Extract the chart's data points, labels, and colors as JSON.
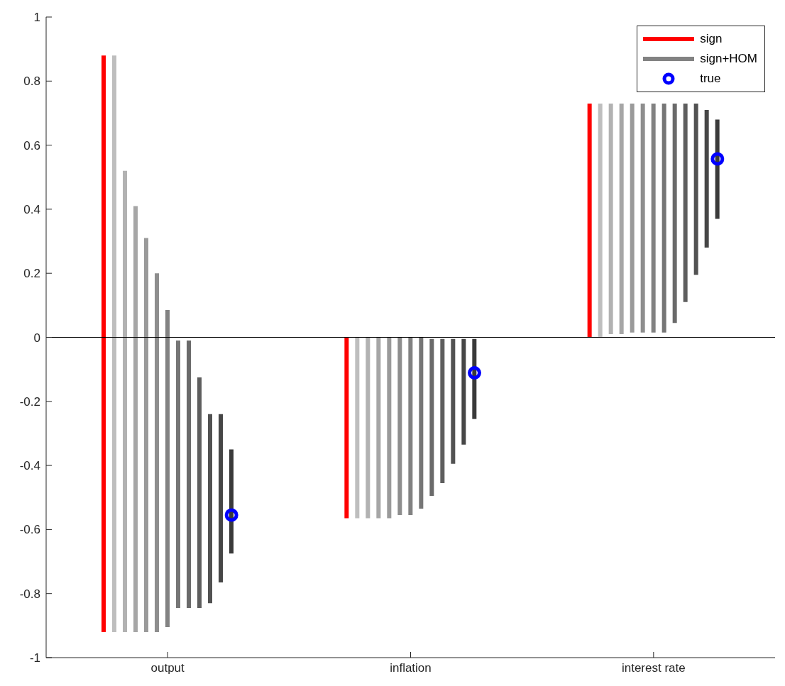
{
  "chart_data": {
    "type": "bar",
    "categories": [
      "output",
      "inflation",
      "interest rate"
    ],
    "ylim": [
      -1,
      1
    ],
    "yticks": [
      -1,
      -0.8,
      -0.6,
      -0.4,
      -0.2,
      0,
      0.2,
      0.4,
      0.6,
      0.8,
      1
    ],
    "grid": false,
    "legend": "top right",
    "ref_lines": [
      {
        "axis": "y",
        "value": 0,
        "color": "#000000"
      }
    ],
    "series": [
      {
        "name": "sign",
        "color": "#ff0000",
        "base": [
          -0.92,
          -0.565,
          0
        ],
        "values": [
          1.8,
          0.565,
          0.73
        ]
      },
      {
        "color": "#bebebe",
        "base": [
          -0.92,
          -0.565,
          0
        ],
        "values": [
          1.8,
          0.565,
          0.73
        ]
      },
      {
        "color": "#b2b2b2",
        "base": [
          -0.92,
          -0.565,
          0.01
        ],
        "values": [
          1.44,
          0.565,
          0.72
        ]
      },
      {
        "color": "#a6a6a6",
        "base": [
          -0.92,
          -0.565,
          0.01
        ],
        "values": [
          1.33,
          0.565,
          0.72
        ]
      },
      {
        "color": "#9a9a9a",
        "base": [
          -0.92,
          -0.565,
          0.015
        ],
        "values": [
          1.23,
          0.565,
          0.715
        ]
      },
      {
        "color": "#8e8e8e",
        "base": [
          -0.92,
          -0.555,
          0.015
        ],
        "values": [
          1.12,
          0.555,
          0.715
        ]
      },
      {
        "name": "sign+HOM",
        "color": "#828282",
        "base": [
          -0.905,
          -0.555,
          0.015
        ],
        "values": [
          0.99,
          0.555,
          0.715
        ]
      },
      {
        "color": "#767676",
        "base": [
          -0.845,
          -0.535,
          0.015
        ],
        "values": [
          0.835,
          0.535,
          0.715
        ]
      },
      {
        "color": "#6a6a6a",
        "base": [
          -0.845,
          -0.495,
          0.045
        ],
        "values": [
          0.835,
          0.49,
          0.685
        ]
      },
      {
        "color": "#5e5e5e",
        "base": [
          -0.845,
          -0.455,
          0.11
        ],
        "values": [
          0.72,
          0.45,
          0.62
        ]
      },
      {
        "color": "#525252",
        "base": [
          -0.83,
          -0.395,
          0.195
        ],
        "values": [
          0.59,
          0.39,
          0.535
        ]
      },
      {
        "color": "#464646",
        "base": [
          -0.765,
          -0.335,
          0.28
        ],
        "values": [
          0.525,
          0.33,
          0.43
        ]
      },
      {
        "color": "#3a3a3a",
        "base": [
          -0.675,
          -0.255,
          0.37
        ],
        "values": [
          0.325,
          0.25,
          0.31
        ]
      },
      {
        "name": "true",
        "type": "scatter",
        "marker": "circle",
        "color": "#0000ff",
        "values": [
          -0.555,
          -0.111,
          0.557
        ]
      }
    ]
  }
}
